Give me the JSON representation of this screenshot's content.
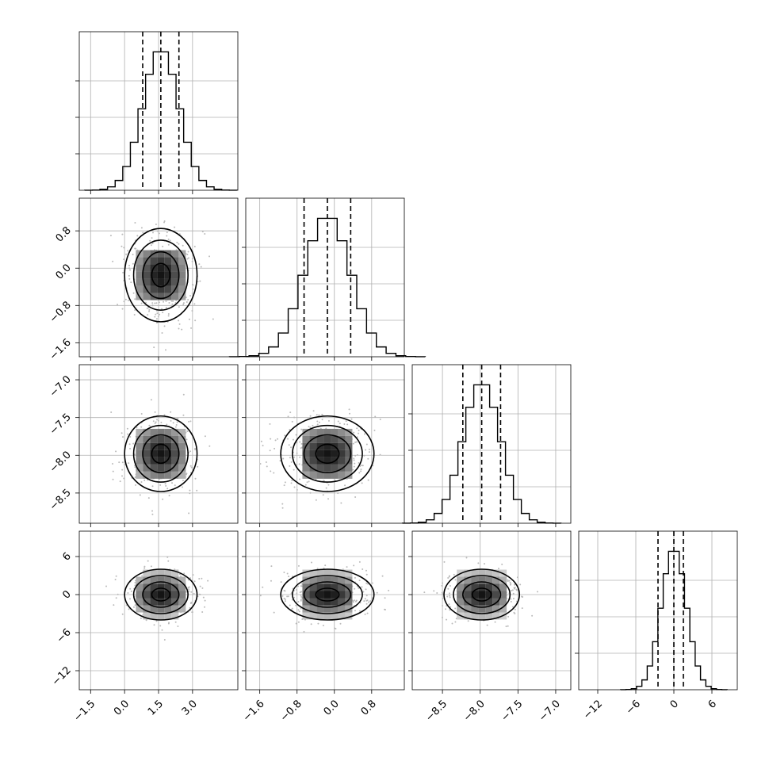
{
  "chart_data": {
    "type": "corner",
    "title": "",
    "parameters": [
      {
        "index": 0,
        "mean": 1.6,
        "std": 0.8,
        "range": [
          -2.0,
          5.0
        ],
        "quantiles": [
          0.8,
          1.6,
          2.4
        ],
        "ticks": [
          -1.5,
          0.0,
          1.5,
          3.0
        ],
        "tick_labels": [
          "−1.5",
          "0.0",
          "1.5",
          "3.0"
        ]
      },
      {
        "index": 1,
        "mean": -0.15,
        "std": 0.5,
        "range": [
          -1.9,
          1.5
        ],
        "quantiles": [
          -0.65,
          -0.15,
          0.35
        ],
        "ticks": [
          -1.6,
          -0.8,
          0.0,
          0.8
        ],
        "tick_labels": [
          "−1.6",
          "−0.8",
          "0.0",
          "0.8"
        ]
      },
      {
        "index": 2,
        "mean": -7.98,
        "std": 0.25,
        "range": [
          -8.9,
          -6.8
        ],
        "quantiles": [
          -8.23,
          -7.98,
          -7.73
        ],
        "ticks": [
          -8.5,
          -8.0,
          -7.5,
          -7.0
        ],
        "tick_labels": [
          "−8.5",
          "−8.0",
          "−7.5",
          "−7.0"
        ]
      },
      {
        "index": 3,
        "mean": 0.0,
        "std": 2.0,
        "range": [
          -15.0,
          10.0
        ],
        "quantiles": [
          -2.5,
          0.0,
          1.5
        ],
        "ticks": [
          -12,
          -6,
          0,
          6
        ],
        "tick_labels": [
          "−12",
          "−6",
          "0",
          "6"
        ]
      }
    ],
    "x_axis_params": [
      0,
      1,
      2,
      3
    ],
    "y_axis_params": [
      1,
      2,
      3
    ],
    "grid": true,
    "contour_levels_sigma": [
      0.5,
      1.0,
      1.5,
      2.0
    ]
  }
}
